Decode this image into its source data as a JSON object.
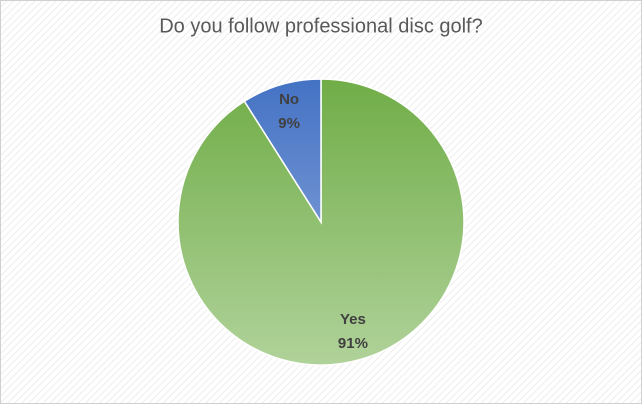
{
  "chart_data": {
    "type": "pie",
    "title": "Do you follow professional disc golf?",
    "categories": [
      "Yes",
      "No"
    ],
    "values": [
      91,
      9
    ],
    "value_labels": [
      "91%",
      "9%"
    ],
    "colors": [
      "#70ad47",
      "#4472c4"
    ]
  }
}
